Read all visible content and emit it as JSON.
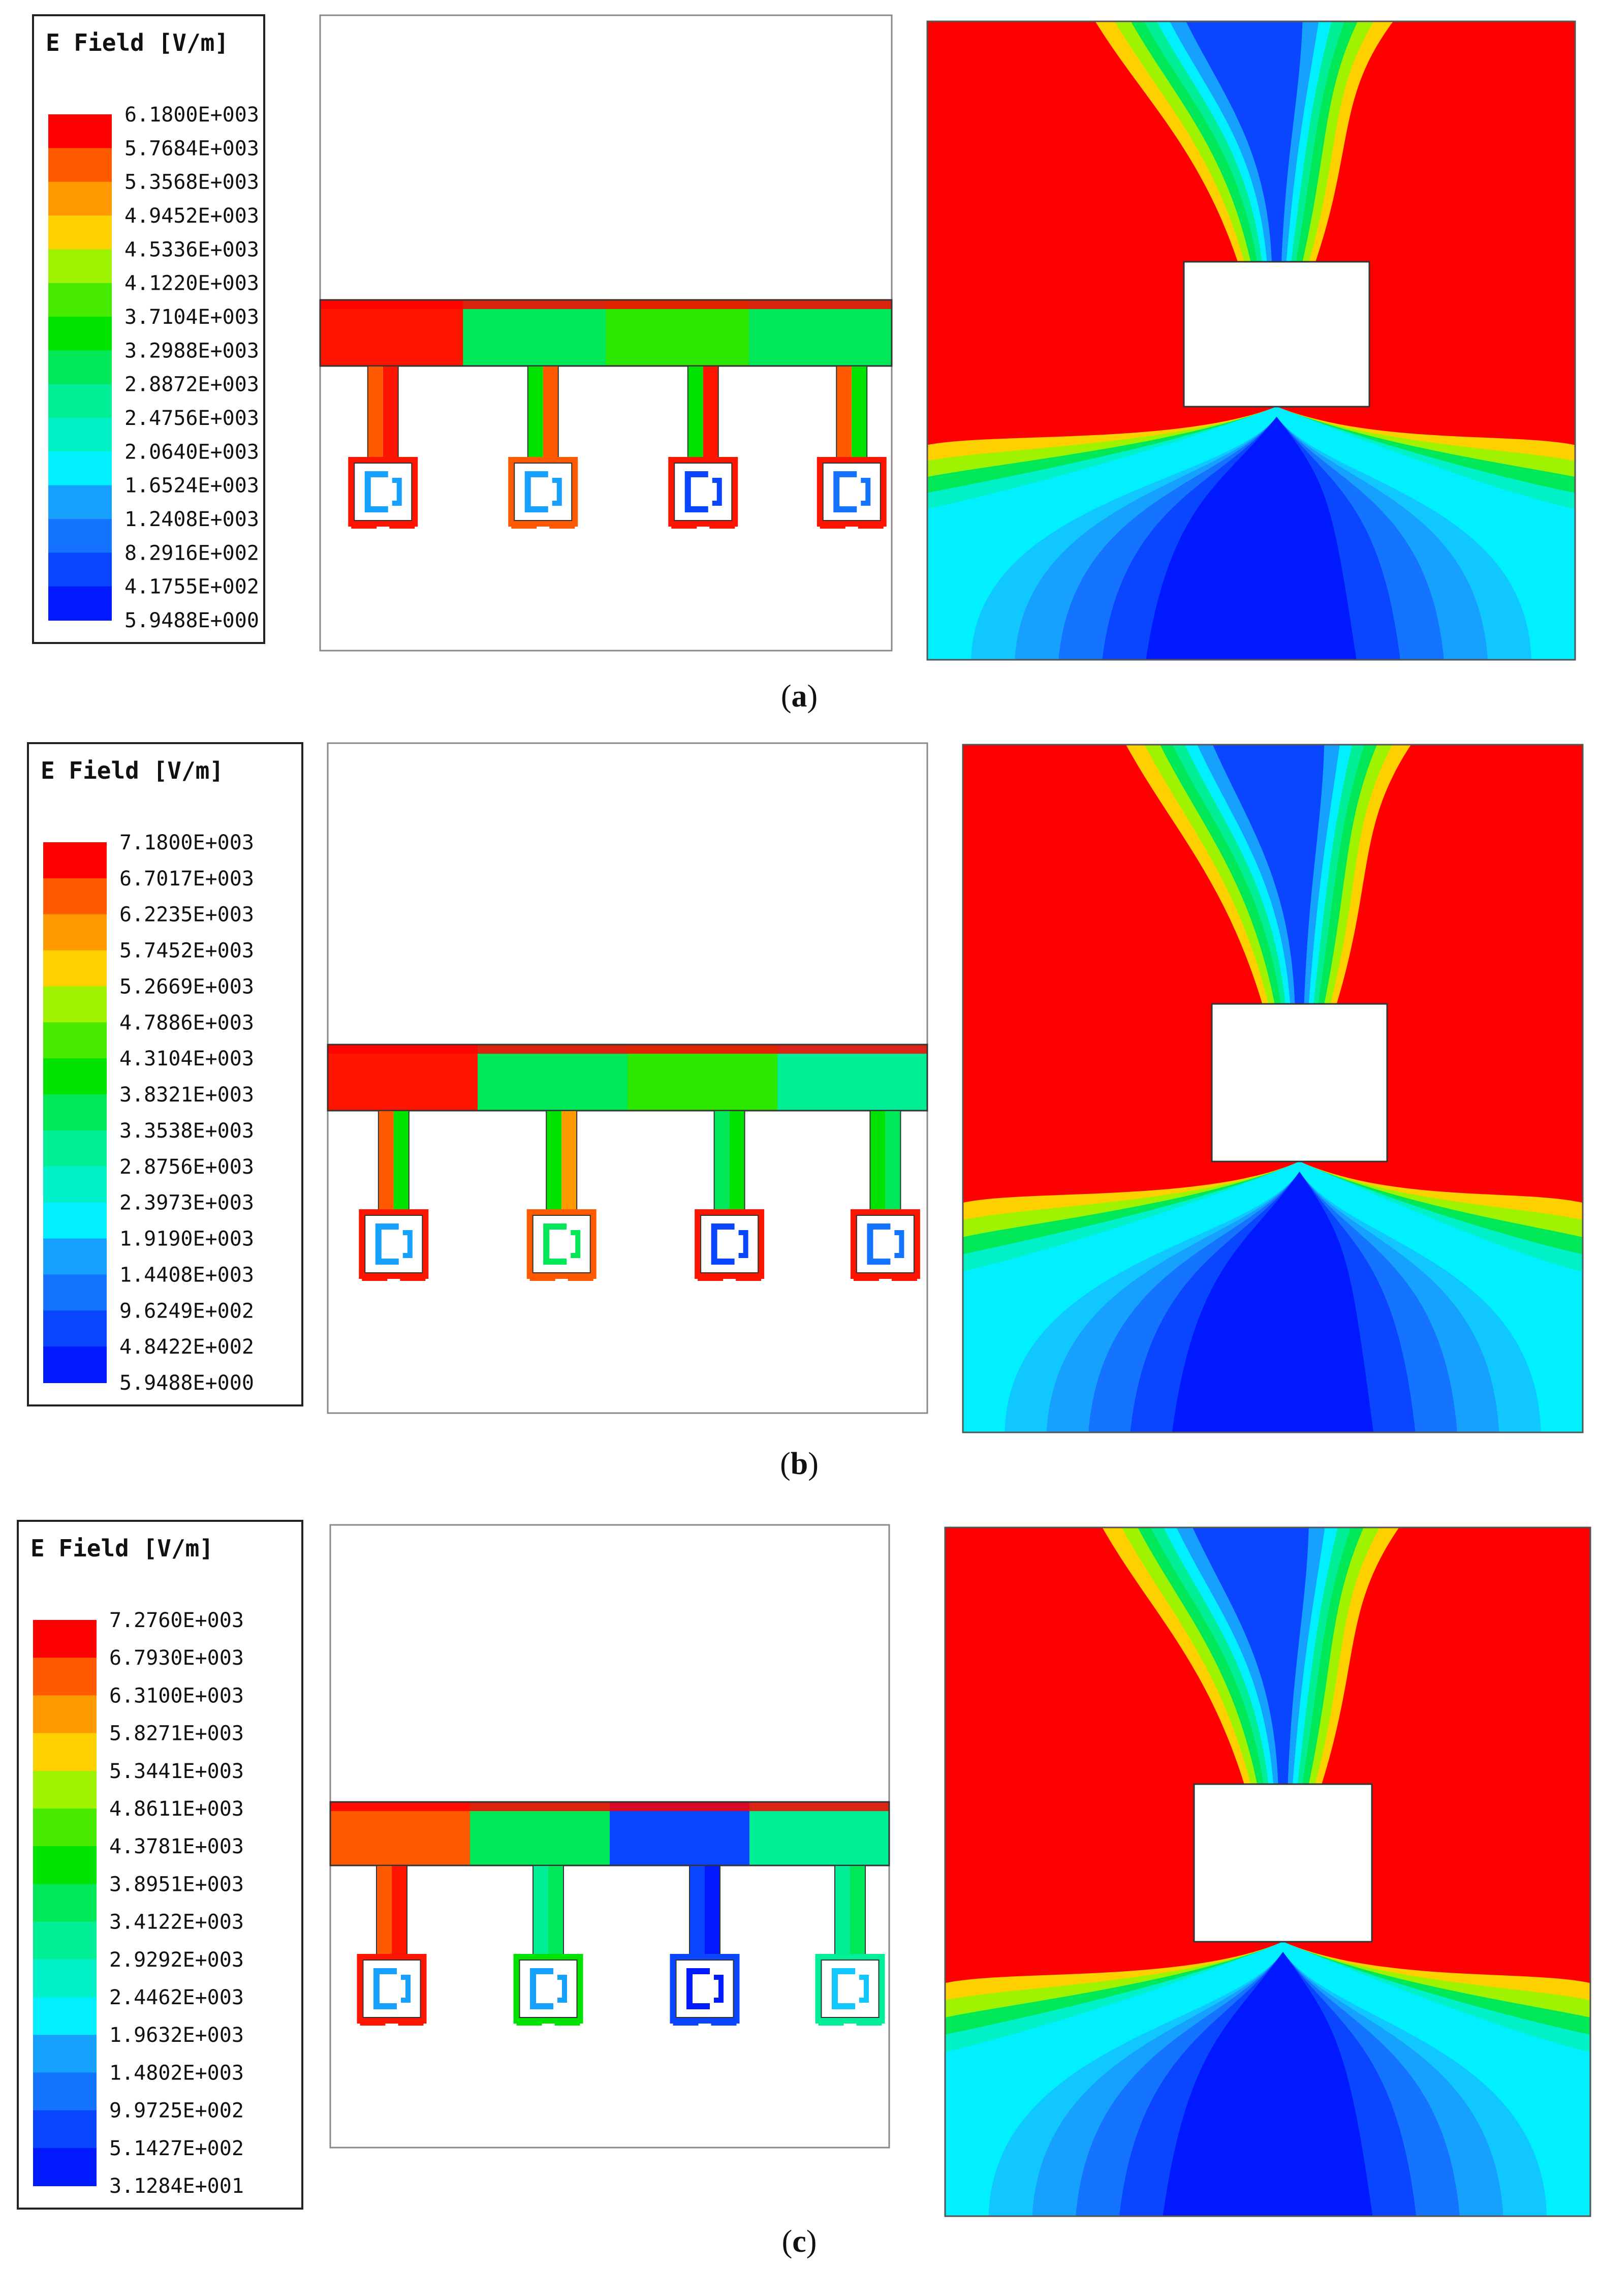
{
  "palette": [
    "#0019ff",
    "#0a46ff",
    "#1473ff",
    "#17a1ff",
    "#10c8ff",
    "#00f0ff",
    "#00f0c8",
    "#00ee95",
    "#00e858",
    "#00e300",
    "#48ea00",
    "#9ff200",
    "#f6f900",
    "#ffd000",
    "#ff9a00",
    "#ff5a00",
    "#ff0000"
  ],
  "panels": [
    {
      "id": "a",
      "caption_letter": "a",
      "legend": {
        "title": "E Field [V/m]",
        "labels": [
          "6.1800E+003",
          "5.7684E+003",
          "5.3568E+003",
          "4.9452E+003",
          "4.5336E+003",
          "4.1220E+003",
          "3.7104E+003",
          "3.2988E+003",
          "2.8872E+003",
          "2.4756E+003",
          "2.0640E+003",
          "1.6524E+003",
          "1.2408E+003",
          "8.2916E+002",
          "4.1755E+002",
          "5.9488E+000"
        ]
      },
      "array_fills": [
        "#ff1400",
        "#00e858",
        "#2ce800",
        "#00e858"
      ],
      "stems": [
        {
          "left": "#ff5a00",
          "right": "#ff1400"
        },
        {
          "left": "#00e300",
          "right": "#ff5a00"
        },
        {
          "left": "#00e300",
          "right": "#ff1400"
        },
        {
          "left": "#ff5a00",
          "right": "#00e300"
        }
      ],
      "cells": [
        "#ff1400",
        "#ff5a00",
        "#ff1400",
        "#ff1400"
      ],
      "cell_inner": [
        "#17a1ff",
        "#17a1ff",
        "#0a46ff",
        "#1473ff"
      ]
    },
    {
      "id": "b",
      "caption_letter": "b",
      "legend": {
        "title": "E Field [V/m]",
        "labels": [
          "7.1800E+003",
          "6.7017E+003",
          "6.2235E+003",
          "5.7452E+003",
          "5.2669E+003",
          "4.7886E+003",
          "4.3104E+003",
          "3.8321E+003",
          "3.3538E+003",
          "2.8756E+003",
          "2.3973E+003",
          "1.9190E+003",
          "1.4408E+003",
          "9.6249E+002",
          "4.8422E+002",
          "5.9488E+000"
        ]
      },
      "array_fills": [
        "#ff1400",
        "#00e858",
        "#2ce800",
        "#00ee95"
      ],
      "stems": [
        {
          "left": "#ff5a00",
          "right": "#00e300"
        },
        {
          "left": "#00e300",
          "right": "#ff9a00"
        },
        {
          "left": "#00e858",
          "right": "#00e300"
        },
        {
          "left": "#00e300",
          "right": "#00e858"
        }
      ],
      "cells": [
        "#ff1400",
        "#ff5a00",
        "#ff1400",
        "#ff1400"
      ],
      "cell_inner": [
        "#17a1ff",
        "#00e858",
        "#0a46ff",
        "#1473ff"
      ]
    },
    {
      "id": "c",
      "caption_letter": "c",
      "legend": {
        "title": "E Field [V/m]",
        "labels": [
          "7.2760E+003",
          "6.7930E+003",
          "6.3100E+003",
          "5.8271E+003",
          "5.3441E+003",
          "4.8611E+003",
          "4.3781E+003",
          "3.8951E+003",
          "3.4122E+003",
          "2.9292E+003",
          "2.4462E+003",
          "1.9632E+003",
          "1.4802E+003",
          "9.9725E+002",
          "5.1427E+002",
          "3.1284E+001"
        ]
      },
      "array_fills": [
        "#ff5a00",
        "#00e858",
        "#0a46ff",
        "#00ee95"
      ],
      "stems": [
        {
          "left": "#ff5a00",
          "right": "#ff1400"
        },
        {
          "left": "#00ee95",
          "right": "#00e858"
        },
        {
          "left": "#0a46ff",
          "right": "#0019ff"
        },
        {
          "left": "#00ee95",
          "right": "#00e858"
        }
      ],
      "cells": [
        "#ff1400",
        "#00e300",
        "#0a46ff",
        "#00ee95"
      ],
      "cell_inner": [
        "#17a1ff",
        "#17a1ff",
        "#0019ff",
        "#10c8ff"
      ]
    }
  ]
}
